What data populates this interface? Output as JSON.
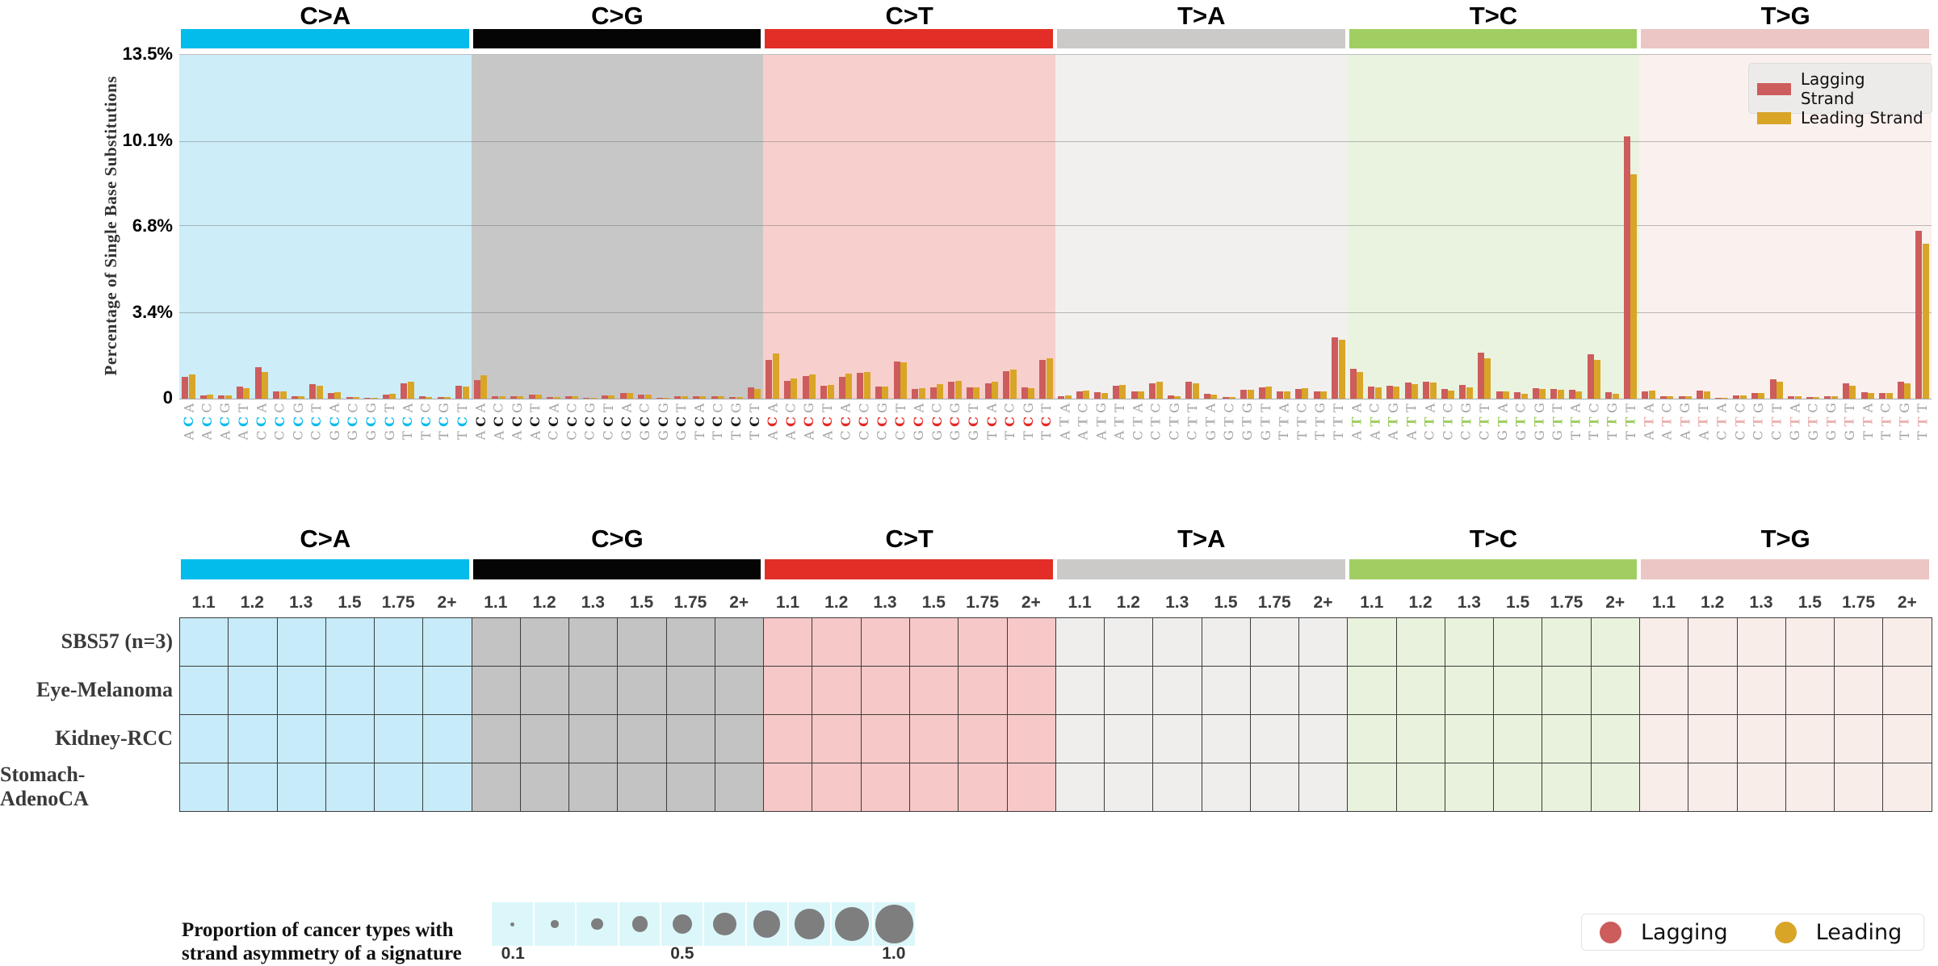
{
  "top_chart": {
    "signature_label": "SBS57",
    "y_axis_title": "Percentage of Single Base Substitutions",
    "y_ticks": [
      "13.5%",
      "10.1%",
      "6.8%",
      "3.4%",
      "0"
    ],
    "legend": {
      "lagging": "Lagging Strand",
      "leading": "Leading Strand"
    }
  },
  "chart_data": {
    "type": "bar",
    "title": "SBS57",
    "ylabel": "Percentage of Single Base Substitutions",
    "ylim": [
      0,
      13.5
    ],
    "ytick_values": [
      0,
      3.4,
      6.8,
      10.1,
      13.5
    ],
    "series_names": [
      "Lagging Strand",
      "Leading Strand"
    ],
    "sections": [
      {
        "label": "C>A",
        "bar_color": "#04BCEC",
        "plot_bg": "#CDEDF8",
        "cell_bg": "#C7EBF8",
        "mid_color": "#04BCEC",
        "contexts": [
          "ACA",
          "ACC",
          "ACG",
          "ACT",
          "CCA",
          "CCC",
          "CCG",
          "CCT",
          "GCA",
          "GCC",
          "GCG",
          "GCT",
          "TCA",
          "TCC",
          "TCG",
          "TCT"
        ],
        "lagging": [
          0.85,
          0.14,
          0.12,
          0.48,
          1.25,
          0.3,
          0.11,
          0.57,
          0.23,
          0.07,
          0.03,
          0.17,
          0.6,
          0.09,
          0.05,
          0.52
        ],
        "leading": [
          0.95,
          0.16,
          0.12,
          0.42,
          1.05,
          0.28,
          0.09,
          0.5,
          0.25,
          0.07,
          0.03,
          0.19,
          0.67,
          0.07,
          0.05,
          0.47
        ]
      },
      {
        "label": "C>G",
        "bar_color": "#050505",
        "plot_bg": "#C7C7C7",
        "cell_bg": "#C3C3C3",
        "mid_color": "#1a1a1a",
        "contexts": [
          "ACA",
          "ACC",
          "ACG",
          "ACT",
          "CCA",
          "CCC",
          "CCG",
          "CCT",
          "GCA",
          "GCC",
          "GCG",
          "GCT",
          "TCA",
          "TCC",
          "TCG",
          "TCT"
        ],
        "lagging": [
          0.72,
          0.1,
          0.1,
          0.17,
          0.06,
          0.1,
          0.04,
          0.14,
          0.21,
          0.17,
          0.04,
          0.1,
          0.1,
          0.11,
          0.06,
          0.43
        ],
        "leading": [
          0.92,
          0.1,
          0.1,
          0.17,
          0.06,
          0.1,
          0.04,
          0.14,
          0.21,
          0.17,
          0.04,
          0.1,
          0.1,
          0.11,
          0.06,
          0.38
        ]
      },
      {
        "label": "C>T",
        "bar_color": "#E22E26",
        "plot_bg": "#F7CFCC",
        "cell_bg": "#F6C8C7",
        "mid_color": "#E32926",
        "contexts": [
          "ACA",
          "ACC",
          "ACG",
          "ACT",
          "CCA",
          "CCC",
          "CCG",
          "CCT",
          "GCA",
          "GCC",
          "GCG",
          "GCT",
          "TCA",
          "TCC",
          "TCG",
          "TCT"
        ],
        "lagging": [
          1.52,
          0.71,
          0.9,
          0.52,
          0.87,
          1.03,
          0.48,
          1.47,
          0.38,
          0.46,
          0.67,
          0.44,
          0.6,
          1.09,
          0.46,
          1.52
        ],
        "leading": [
          1.76,
          0.78,
          0.95,
          0.54,
          0.98,
          1.06,
          0.49,
          1.43,
          0.41,
          0.57,
          0.71,
          0.46,
          0.67,
          1.14,
          0.42,
          1.59
        ]
      },
      {
        "label": "T>A",
        "bar_color": "#CCCAC9",
        "plot_bg": "#F1F0EF",
        "cell_bg": "#EFEEED",
        "mid_color": "#BDBBBA",
        "contexts": [
          "ATA",
          "ATC",
          "ATG",
          "ATT",
          "CTA",
          "CTC",
          "CTG",
          "CTT",
          "GTA",
          "GTC",
          "GTG",
          "GTT",
          "TTA",
          "TTC",
          "TTG",
          "TTT"
        ],
        "lagging": [
          0.11,
          0.3,
          0.24,
          0.52,
          0.28,
          0.6,
          0.13,
          0.66,
          0.19,
          0.06,
          0.35,
          0.46,
          0.3,
          0.38,
          0.28,
          2.4
        ],
        "leading": [
          0.13,
          0.32,
          0.22,
          0.54,
          0.28,
          0.67,
          0.11,
          0.6,
          0.16,
          0.06,
          0.35,
          0.49,
          0.3,
          0.42,
          0.28,
          2.3
        ]
      },
      {
        "label": "T>C",
        "bar_color": "#A1CE63",
        "plot_bg": "#EAF3DF",
        "cell_bg": "#E8F2DC",
        "mid_color": "#A1CE63",
        "contexts": [
          "ATA",
          "ATC",
          "ATG",
          "ATT",
          "CTA",
          "CTC",
          "CTG",
          "CTT",
          "GTA",
          "GTC",
          "GTG",
          "GTT",
          "TTA",
          "TTC",
          "TTG",
          "TTT"
        ],
        "lagging": [
          1.18,
          0.49,
          0.52,
          0.63,
          0.67,
          0.38,
          0.54,
          1.8,
          0.3,
          0.24,
          0.42,
          0.38,
          0.35,
          1.75,
          0.24,
          10.3
        ],
        "leading": [
          1.05,
          0.44,
          0.49,
          0.57,
          0.63,
          0.32,
          0.46,
          1.58,
          0.28,
          0.2,
          0.38,
          0.36,
          0.3,
          1.52,
          0.2,
          8.8
        ]
      },
      {
        "label": "T>G",
        "bar_color": "#EBC6C4",
        "plot_bg": "#FAF0ED",
        "cell_bg": "#F9EDEA",
        "mid_color": "#EBB4B1",
        "contexts": [
          "ATA",
          "ATC",
          "ATG",
          "ATT",
          "CTA",
          "CTC",
          "CTG",
          "CTT",
          "GTA",
          "GTC",
          "GTG",
          "GTT",
          "TTA",
          "TTC",
          "TTG",
          "TTT"
        ],
        "lagging": [
          0.28,
          0.09,
          0.09,
          0.32,
          0.03,
          0.13,
          0.22,
          0.76,
          0.09,
          0.06,
          0.09,
          0.6,
          0.24,
          0.22,
          0.67,
          6.6
        ],
        "leading": [
          0.32,
          0.09,
          0.09,
          0.28,
          0.03,
          0.13,
          0.22,
          0.67,
          0.09,
          0.06,
          0.09,
          0.52,
          0.22,
          0.22,
          0.6,
          6.1
        ]
      }
    ]
  },
  "bottom_panel": {
    "bins": [
      "1.1",
      "1.2",
      "1.3",
      "1.5",
      "1.75",
      "2+"
    ],
    "rows": [
      "SBS57 (n=3)",
      "Eye-Melanoma",
      "Kidney-RCC",
      "Stomach-AdenoCA"
    ]
  },
  "bubble_legend": {
    "line1": "Proportion of cancer types with",
    "line2": "strand asymmetry of a signature",
    "values": [
      0.1,
      0.2,
      0.3,
      0.4,
      0.5,
      0.6,
      0.7,
      0.8,
      0.9,
      1.0
    ],
    "tick_labels": [
      "0.1",
      "0.5",
      "1.0"
    ],
    "tick_positions": [
      0,
      4,
      9
    ]
  },
  "strand_legend": {
    "lagging": "Lagging",
    "leading": "Leading"
  },
  "colors": {
    "lagging": "#CD5C5C",
    "leading": "#D9A527",
    "outer_letter": "#A6A3A2",
    "bubble_fill": "#7E7E7E",
    "bubble_bg": "#DCF7FA"
  }
}
